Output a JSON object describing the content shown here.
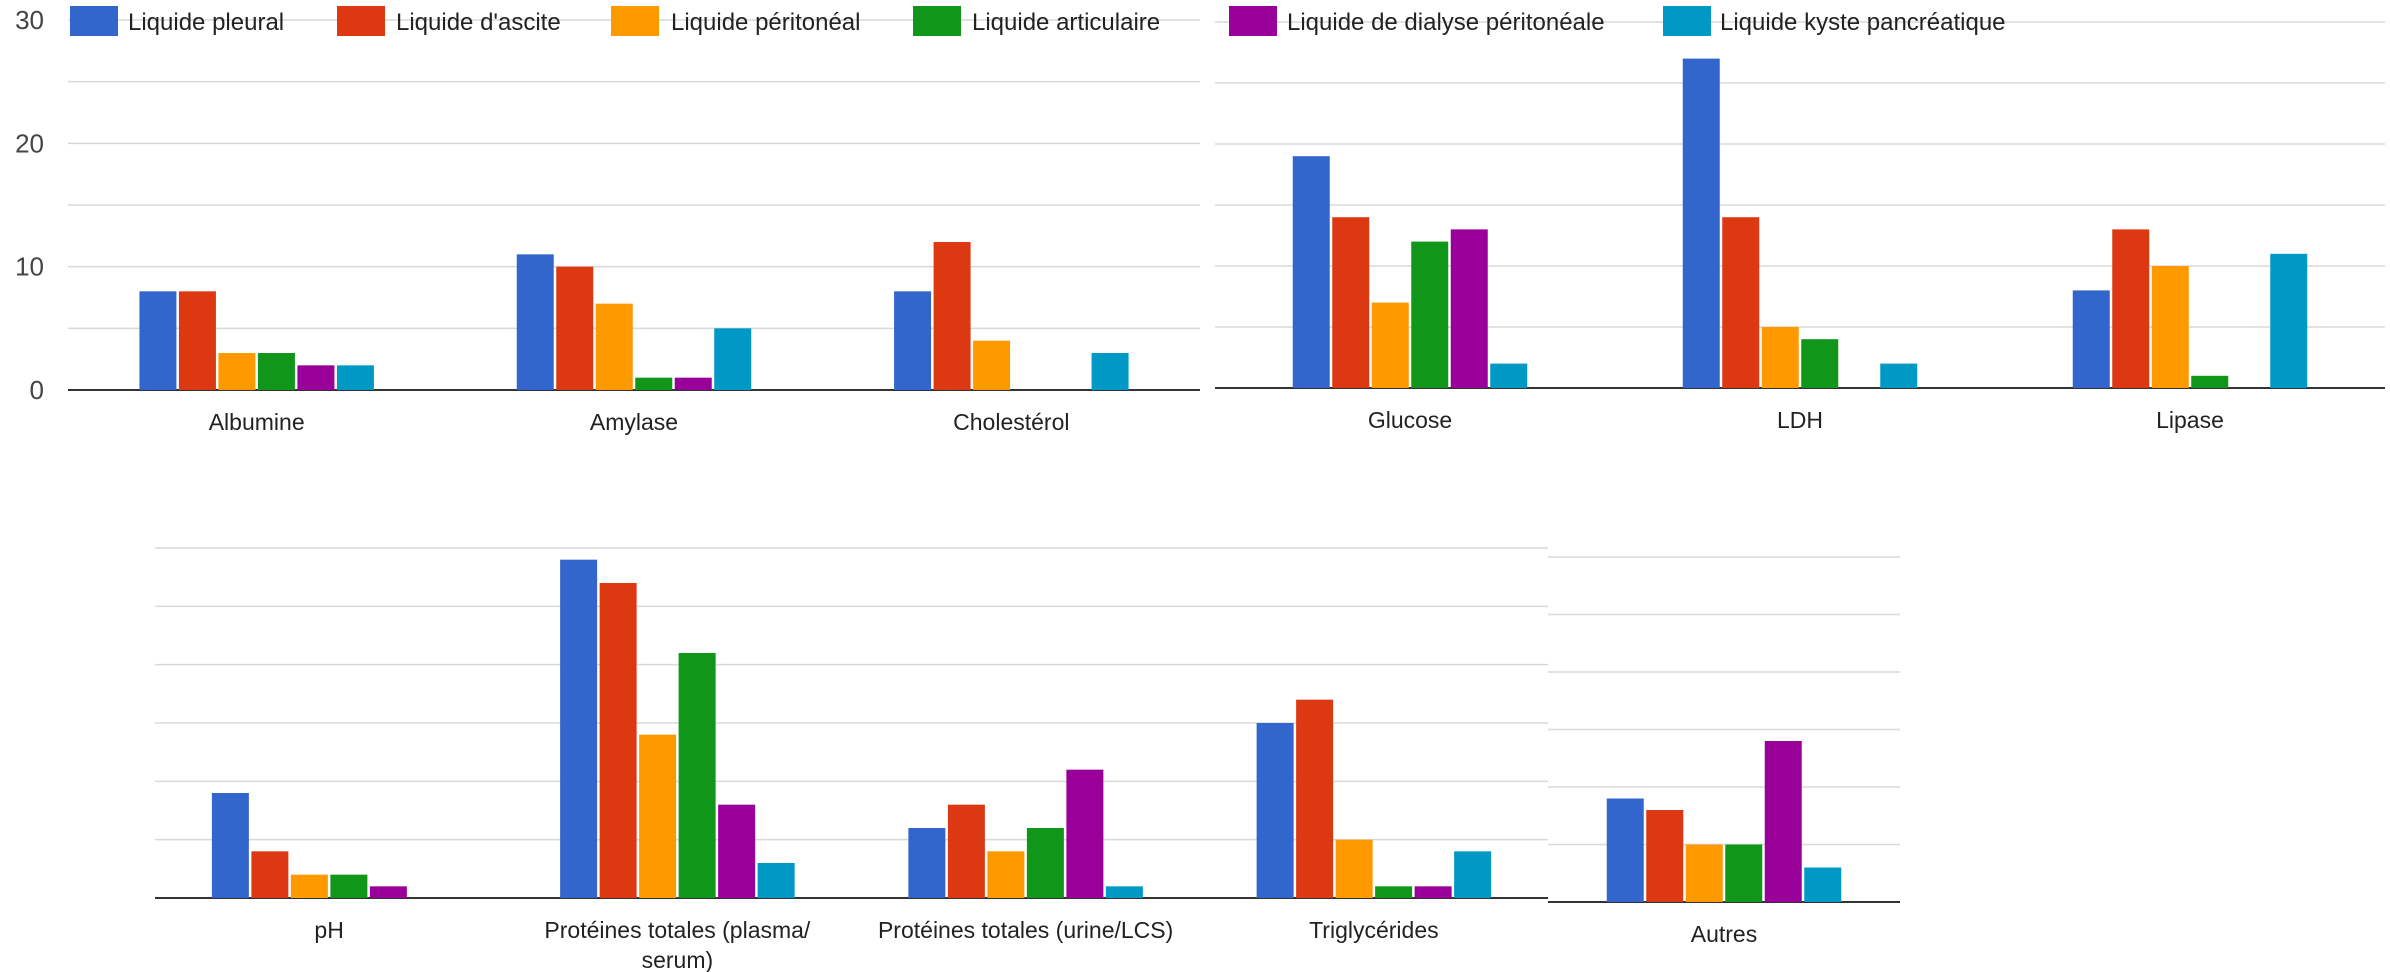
{
  "chart_data": {
    "type": "bar",
    "ylim": [
      0,
      30
    ],
    "y_ticks": [
      "0",
      "10",
      "20",
      "30"
    ],
    "grid": true,
    "legend_position": "top",
    "series": [
      {
        "name": "Liquide pleural",
        "color": "#3366cc"
      },
      {
        "name": "Liquide d'ascite",
        "color": "#dc3912"
      },
      {
        "name": "Liquide péritonéal",
        "color": "#ff9900"
      },
      {
        "name": "Liquide articulaire",
        "color": "#109618"
      },
      {
        "name": "Liquide de dialyse péritonéale",
        "color": "#990099"
      },
      {
        "name": "Liquide kyste pancréatique",
        "color": "#0099c6"
      }
    ],
    "categories": [
      {
        "label": [
          "Albumine"
        ],
        "values": [
          8,
          8,
          3,
          3,
          2,
          2
        ]
      },
      {
        "label": [
          "Amylase"
        ],
        "values": [
          11,
          10,
          7,
          1,
          1,
          5
        ]
      },
      {
        "label": [
          "Cholestérol"
        ],
        "values": [
          8,
          12,
          4,
          0,
          0,
          3
        ]
      },
      {
        "label": [
          "Glucose"
        ],
        "values": [
          19,
          14,
          7,
          12,
          13,
          2
        ]
      },
      {
        "label": [
          "LDH"
        ],
        "values": [
          27,
          14,
          5,
          4,
          0,
          2
        ]
      },
      {
        "label": [
          "Lipase"
        ],
        "values": [
          8,
          13,
          10,
          1,
          0,
          11
        ]
      },
      {
        "label": [
          "pH"
        ],
        "values": [
          9,
          4,
          2,
          2,
          1,
          0
        ]
      },
      {
        "label": [
          "Protéines totales (plasma/",
          "serum)"
        ],
        "values": [
          29,
          27,
          14,
          21,
          8,
          3
        ]
      },
      {
        "label": [
          "Protéines totales (urine/LCS)"
        ],
        "values": [
          6,
          8,
          4,
          6,
          11,
          1
        ]
      },
      {
        "label": [
          "Triglycérides"
        ],
        "values": [
          15,
          17,
          5,
          1,
          1,
          4
        ]
      },
      {
        "label": [
          "Autres"
        ],
        "values": [
          9,
          8,
          5,
          5,
          14,
          3
        ]
      }
    ]
  }
}
